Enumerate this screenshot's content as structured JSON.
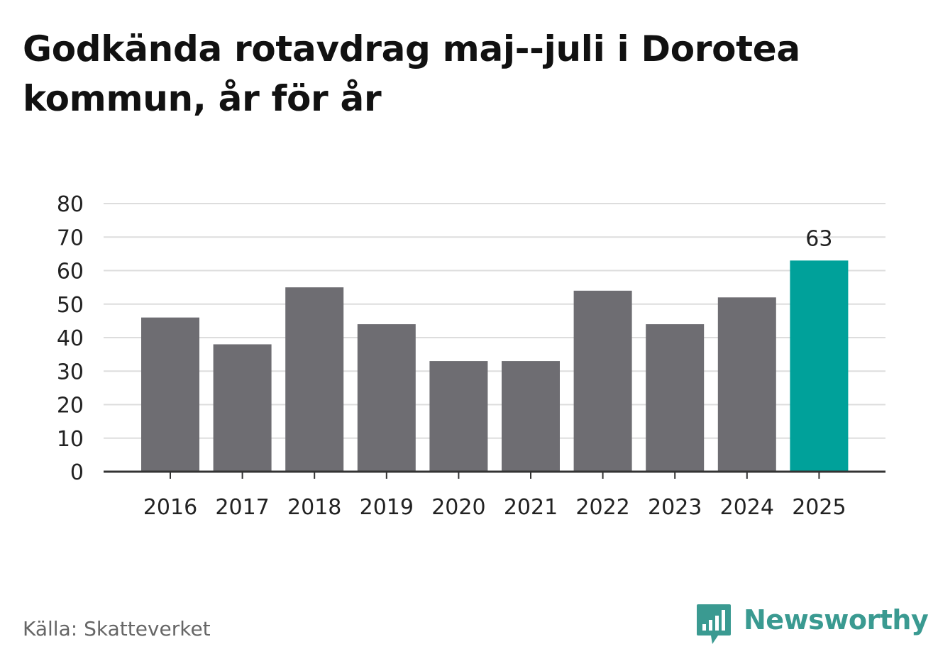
{
  "title": "Godkända rotavdrag maj--juli i Dorotea kommun, år för år",
  "source": "Källa: Skatteverket",
  "brand": {
    "name": "Newsworthy",
    "color": "#3a9a91",
    "icon": "bar-chart-speech-bubble-icon"
  },
  "colors": {
    "bar": "#6e6d72",
    "highlight": "#00a19a",
    "grid": "#dddddd",
    "axis": "#333333",
    "text": "#222222"
  },
  "chart_data": {
    "type": "bar",
    "categories": [
      "2016",
      "2017",
      "2018",
      "2019",
      "2020",
      "2021",
      "2022",
      "2023",
      "2024",
      "2025"
    ],
    "values": [
      46,
      38,
      55,
      44,
      33,
      33,
      54,
      44,
      52,
      63
    ],
    "highlight_index": 9,
    "data_labels": [
      {
        "index": 9,
        "text": "63"
      }
    ],
    "ylim": [
      0,
      80
    ],
    "yticks": [
      0,
      10,
      20,
      30,
      40,
      50,
      60,
      70,
      80
    ],
    "grid": true,
    "xlabel": "",
    "ylabel": ""
  }
}
